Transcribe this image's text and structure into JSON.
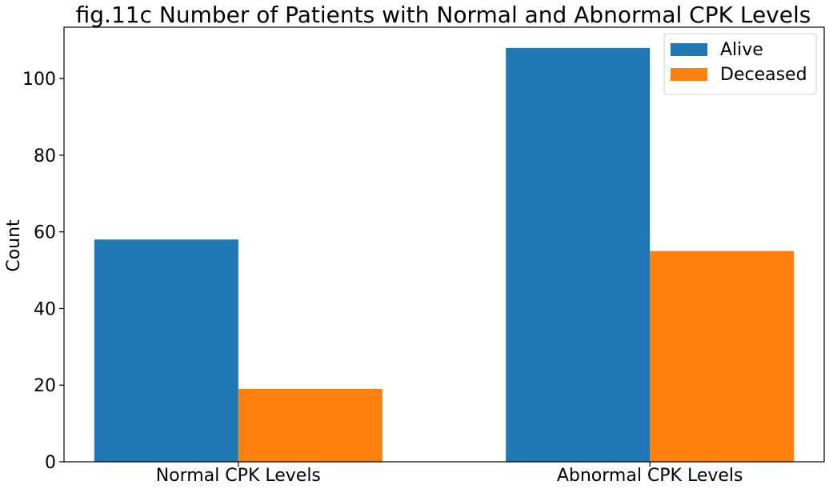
{
  "chart_data": {
    "type": "bar",
    "title": "fig.11c Number of Patients with Normal and Abnormal CPK Levels",
    "xlabel": "",
    "ylabel": "Count",
    "categories": [
      "Normal CPK Levels",
      "Abnormal CPK Levels"
    ],
    "series": [
      {
        "name": "Alive",
        "values": [
          58,
          108
        ],
        "color": "#1f77b4"
      },
      {
        "name": "Deceased",
        "values": [
          19,
          55
        ],
        "color": "#ff7f0e"
      }
    ],
    "ylim": [
      0,
      113.4
    ],
    "yticks": [
      0,
      20,
      40,
      60,
      80,
      100
    ],
    "grid": false,
    "legend_position": "top-right"
  }
}
